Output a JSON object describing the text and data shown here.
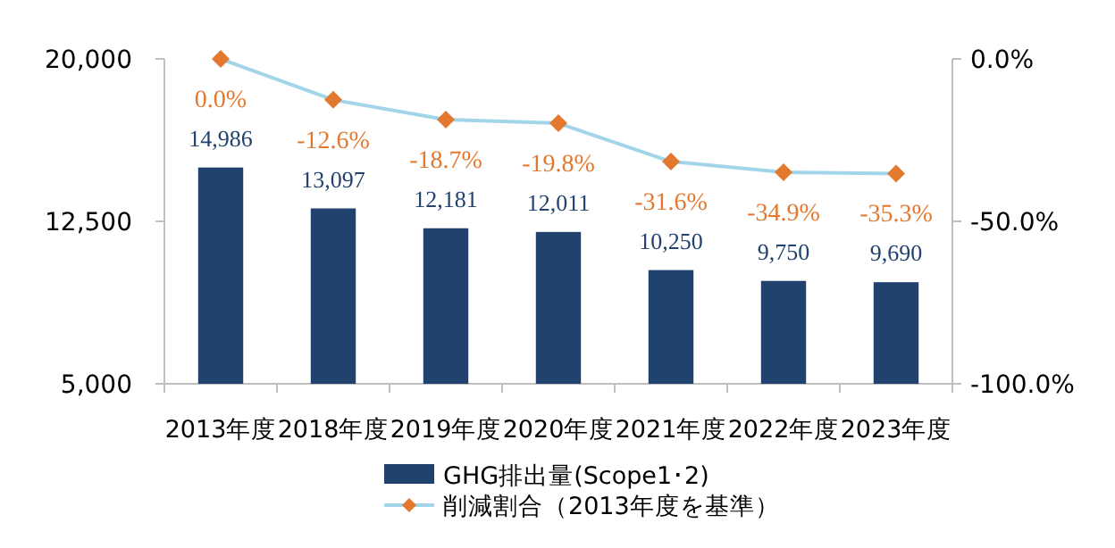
{
  "chart_data": {
    "type": "bar",
    "categories": [
      "2013年度",
      "2018年度",
      "2019年度",
      "2020年度",
      "2021年度",
      "2022年度",
      "2023年度"
    ],
    "series": [
      {
        "name": "GHG排出量(Scope1･2)",
        "color": "#21426f",
        "values": [
          14986,
          13097,
          12181,
          12011,
          10250,
          9750,
          9690
        ],
        "value_labels": [
          "14,986",
          "13,097",
          "12,181",
          "12,011",
          "10,250",
          "9,750",
          "9,690"
        ]
      },
      {
        "name": "削減割合（2013年度を基準）",
        "type": "line",
        "axis": "y2",
        "color": "#a3d5ea",
        "colors": [
          "#e2792f",
          "#e2792f",
          "#e2792f",
          "#e2792f",
          "#e2792f",
          "#e2792f",
          "#e2792f"
        ],
        "marker": "diamond",
        "values": [
          0.0,
          -12.6,
          -18.7,
          -19.8,
          -31.6,
          -34.9,
          -35.3
        ],
        "value_labels": [
          "0.0%",
          "-12.6%",
          "-18.7%",
          "-19.8%",
          "-31.6%",
          "-34.9%",
          "-35.3%"
        ]
      }
    ],
    "ylim": [
      5000,
      20000
    ],
    "yticks": [
      {
        "value": 5000,
        "label": "5,000"
      },
      {
        "value": 12500,
        "label": "12,500"
      },
      {
        "value": 20000,
        "label": "20,000"
      }
    ],
    "y2lim": [
      -100,
      0
    ],
    "y2ticks": [
      {
        "value": -100,
        "label": "-100.0%"
      },
      {
        "value": -50,
        "label": "-50.0%"
      },
      {
        "value": 0,
        "label": "0.0%"
      }
    ],
    "grid": false,
    "legend": "bottom"
  }
}
